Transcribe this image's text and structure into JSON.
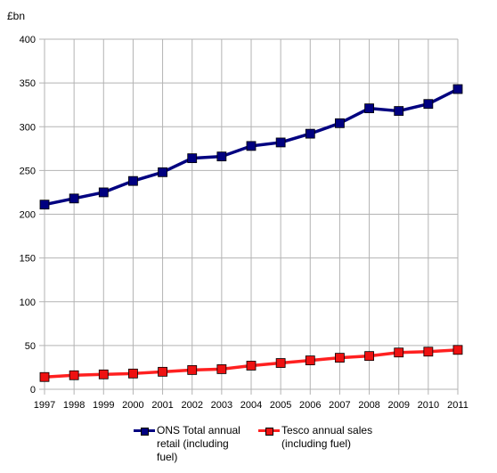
{
  "chart_data": {
    "type": "line",
    "y_unit_label": "£bn",
    "xlabel": "",
    "ylabel": "",
    "categories": [
      "1997",
      "1998",
      "1999",
      "2000",
      "2001",
      "2002",
      "2003",
      "2004",
      "2005",
      "2006",
      "2007",
      "2008",
      "2009",
      "2010",
      "2011"
    ],
    "ylim": [
      0,
      400
    ],
    "yticks": [
      "0",
      "50",
      "100",
      "150",
      "200",
      "250",
      "300",
      "350",
      "400"
    ],
    "grid": true,
    "legend_position": "bottom",
    "series": [
      {
        "name": "ONS Total annual\nretail (including\nfuel)",
        "color": "#000080",
        "marker_color": "#000080",
        "values": [
          211,
          218,
          225,
          238,
          248,
          264,
          266,
          278,
          282,
          292,
          304,
          321,
          318,
          326,
          343
        ]
      },
      {
        "name": "Tesco annual sales\n(including fuel)",
        "color": "#ff2020",
        "marker_color": "#ee1111",
        "values": [
          14,
          16,
          17,
          18,
          20,
          22,
          23,
          27,
          30,
          33,
          36,
          38,
          42,
          43,
          45
        ]
      }
    ]
  }
}
